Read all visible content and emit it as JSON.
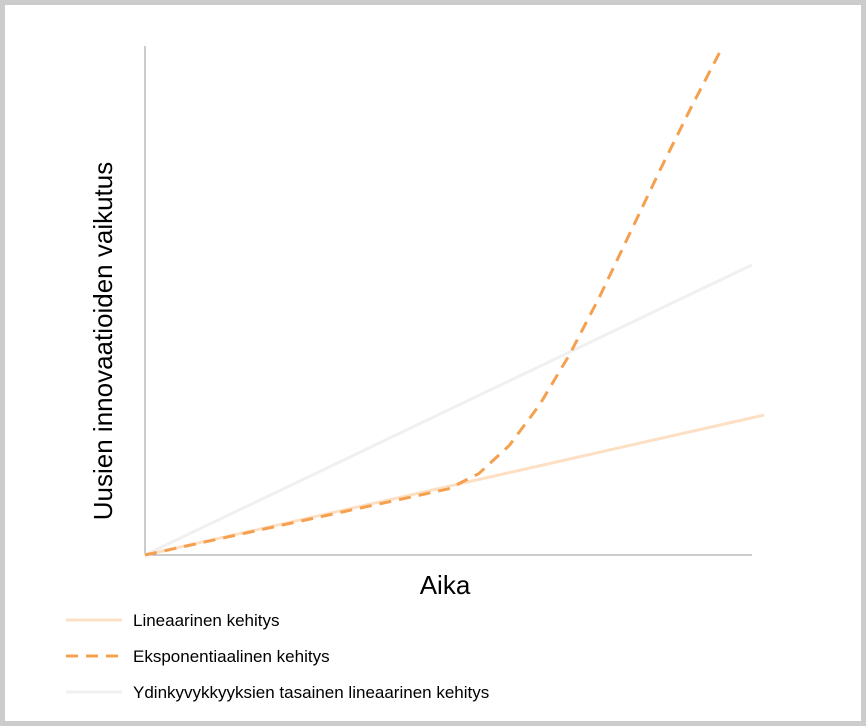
{
  "chart_data": {
    "type": "line",
    "title": "",
    "xlabel": "Aika",
    "ylabel": "Uusien innovaatioiden vaikutus",
    "xlim": [
      0,
      10
    ],
    "ylim": [
      0,
      10
    ],
    "grid": false,
    "legend_position": "bottom-left",
    "series": [
      {
        "name": "Lineaarinen kehitys",
        "color": "#fde0c4",
        "style": "solid",
        "x": [
          0,
          10.2
        ],
        "y": [
          0,
          2.75
        ]
      },
      {
        "name": "Eksponentiaalinen kehitys",
        "color": "#f5a04f",
        "style": "dashed",
        "x": [
          0,
          5.0,
          5.5,
          6.0,
          6.5,
          7.0,
          7.5,
          8.0,
          8.5,
          9.0,
          9.5
        ],
        "y": [
          0,
          1.3,
          1.6,
          2.15,
          2.95,
          3.95,
          5.1,
          6.35,
          7.6,
          8.8,
          9.95
        ]
      },
      {
        "name": "Ydinkyvykkyyksien tasainen lineaarinen kehitys",
        "color": "#f0f0f0",
        "style": "solid",
        "x": [
          0,
          10
        ],
        "y": [
          0,
          5.7
        ]
      }
    ]
  }
}
